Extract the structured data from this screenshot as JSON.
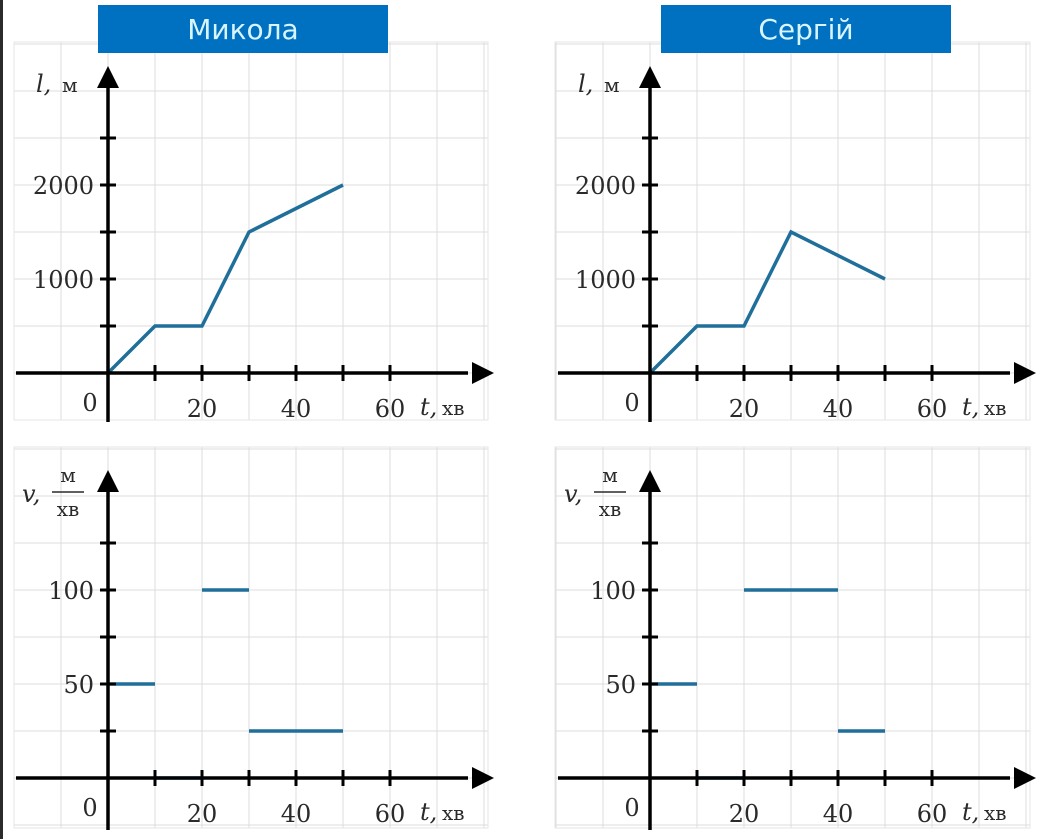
{
  "chart_data": [
    {
      "id": "mykola-distance",
      "type": "line",
      "title": "Микола",
      "xlabel": {
        "var": "t",
        "unit": "хв"
      },
      "ylabel": {
        "var": "l",
        "unit": "м"
      },
      "xlim": [
        -10,
        70
      ],
      "ylim": [
        -500,
        3000
      ],
      "x_ticks": [
        10,
        20,
        30,
        40,
        50,
        60
      ],
      "x_tick_labels": [
        {
          "value": 20,
          "label": "20"
        },
        {
          "value": 40,
          "label": "40"
        },
        {
          "value": 60,
          "label": "60"
        }
      ],
      "y_ticks": [
        500,
        1000,
        1500,
        2000,
        2500
      ],
      "y_tick_labels": [
        {
          "value": 1000,
          "label": "1000"
        },
        {
          "value": 2000,
          "label": "2000"
        }
      ],
      "origin_label": "0",
      "grid": true,
      "series": [
        {
          "name": "Микола",
          "x": [
            0,
            10,
            20,
            30,
            50
          ],
          "y": [
            0,
            500,
            500,
            1500,
            2000
          ]
        }
      ]
    },
    {
      "id": "serhii-distance",
      "type": "line",
      "title": "Сергій",
      "xlabel": {
        "var": "t",
        "unit": "хв"
      },
      "ylabel": {
        "var": "l",
        "unit": "м"
      },
      "xlim": [
        -10,
        70
      ],
      "ylim": [
        -500,
        3000
      ],
      "x_ticks": [
        10,
        20,
        30,
        40,
        50,
        60
      ],
      "x_tick_labels": [
        {
          "value": 20,
          "label": "20"
        },
        {
          "value": 40,
          "label": "40"
        },
        {
          "value": 60,
          "label": "60"
        }
      ],
      "y_ticks": [
        500,
        1000,
        1500,
        2000,
        2500
      ],
      "y_tick_labels": [
        {
          "value": 1000,
          "label": "1000"
        },
        {
          "value": 2000,
          "label": "2000"
        }
      ],
      "origin_label": "0",
      "grid": true,
      "series": [
        {
          "name": "Сергій",
          "x": [
            0,
            10,
            20,
            30,
            50
          ],
          "y": [
            0,
            500,
            500,
            1500,
            1000
          ]
        }
      ]
    },
    {
      "id": "mykola-speed",
      "type": "line",
      "title": "",
      "xlabel": {
        "var": "t",
        "unit": "хв"
      },
      "ylabel": {
        "var": "v",
        "unit_num": "м",
        "unit_den": "хв"
      },
      "xlim": [
        -10,
        70
      ],
      "ylim": [
        -25,
        150
      ],
      "x_ticks": [
        10,
        20,
        30,
        40,
        50,
        60
      ],
      "x_tick_labels": [
        {
          "value": 20,
          "label": "20"
        },
        {
          "value": 40,
          "label": "40"
        },
        {
          "value": 60,
          "label": "60"
        }
      ],
      "y_ticks": [
        25,
        50,
        75,
        100,
        125
      ],
      "y_tick_labels": [
        {
          "value": 50,
          "label": "50"
        },
        {
          "value": 100,
          "label": "100"
        }
      ],
      "origin_label": "0",
      "grid": true,
      "segments": [
        {
          "x0": 0,
          "x1": 10,
          "y": 50
        },
        {
          "x0": 10,
          "x1": 20,
          "y": 0
        },
        {
          "x0": 20,
          "x1": 30,
          "y": 100
        },
        {
          "x0": 30,
          "x1": 50,
          "y": 25
        }
      ]
    },
    {
      "id": "serhii-speed",
      "type": "line",
      "title": "",
      "xlabel": {
        "var": "t",
        "unit": "хв"
      },
      "ylabel": {
        "var": "v",
        "unit_num": "м",
        "unit_den": "хв"
      },
      "xlim": [
        -10,
        70
      ],
      "ylim": [
        -25,
        150
      ],
      "x_ticks": [
        10,
        20,
        30,
        40,
        50,
        60
      ],
      "x_tick_labels": [
        {
          "value": 20,
          "label": "20"
        },
        {
          "value": 40,
          "label": "40"
        },
        {
          "value": 60,
          "label": "60"
        }
      ],
      "y_ticks": [
        25,
        50,
        75,
        100,
        125
      ],
      "y_tick_labels": [
        {
          "value": 50,
          "label": "50"
        },
        {
          "value": 100,
          "label": "100"
        }
      ],
      "origin_label": "0",
      "grid": true,
      "segments": [
        {
          "x0": 0,
          "x1": 10,
          "y": 50
        },
        {
          "x0": 10,
          "x1": 20,
          "y": 0
        },
        {
          "x0": 20,
          "x1": 40,
          "y": 100
        },
        {
          "x0": 40,
          "x1": 50,
          "y": 25
        }
      ]
    }
  ],
  "titles": {
    "left": "Микола",
    "right": "Сергій"
  },
  "colors": {
    "badge": "#0070c0",
    "badge_text": "#d8f4ff",
    "line": "#1f6f9a",
    "zero_segment": "#8fd3f0",
    "grid": "#dcdcdc"
  }
}
